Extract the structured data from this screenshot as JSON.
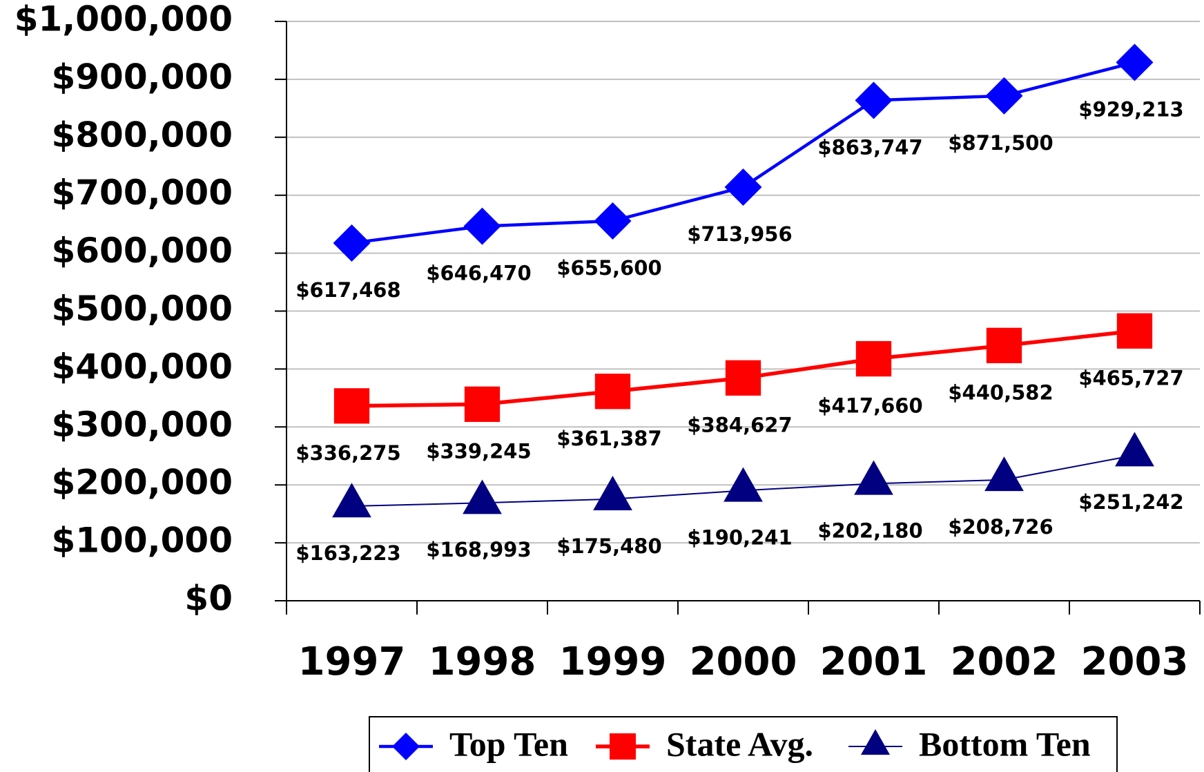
{
  "chart_data": {
    "type": "line",
    "categories": [
      "1997",
      "1998",
      "1999",
      "2000",
      "2001",
      "2002",
      "2003"
    ],
    "series": [
      {
        "name": "Top Ten",
        "color": "#0000ff",
        "marker": "diamond",
        "values": [
          617468,
          646470,
          655600,
          713956,
          863747,
          871500,
          929213
        ],
        "value_labels": [
          "$617,468",
          "$646,470",
          "$655,600",
          "$713,956",
          "$863,747",
          "$871,500",
          "$929,213"
        ]
      },
      {
        "name": "State Avg.",
        "color": "#ff0000",
        "marker": "square",
        "values": [
          336275,
          339245,
          361387,
          384627,
          417660,
          440582,
          465727
        ],
        "value_labels": [
          "$336,275",
          "$339,245",
          "$361,387",
          "$384,627",
          "$417,660",
          "$440,582",
          "$465,727"
        ]
      },
      {
        "name": "Bottom Ten",
        "color": "#000080",
        "marker": "triangle",
        "values": [
          163223,
          168993,
          175480,
          190241,
          202180,
          208726,
          251242
        ],
        "value_labels": [
          "$163,223",
          "$168,993",
          "$175,480",
          "$190,241",
          "$202,180",
          "$208,726",
          "$251,242"
        ]
      }
    ],
    "ylim": [
      0,
      1000000
    ],
    "yticks": [
      {
        "value": 0,
        "label": "$0"
      },
      {
        "value": 100000,
        "label": "$100,000"
      },
      {
        "value": 200000,
        "label": "$200,000"
      },
      {
        "value": 300000,
        "label": "$300,000"
      },
      {
        "value": 400000,
        "label": "$400,000"
      },
      {
        "value": 500000,
        "label": "$500,000"
      },
      {
        "value": 600000,
        "label": "$600,000"
      },
      {
        "value": 700000,
        "label": "$700,000"
      },
      {
        "value": 800000,
        "label": "$800,000"
      },
      {
        "value": 900000,
        "label": "$900,000"
      },
      {
        "value": 1000000,
        "label": "$1,000,000"
      }
    ],
    "grid": true,
    "legend": "bottom"
  }
}
